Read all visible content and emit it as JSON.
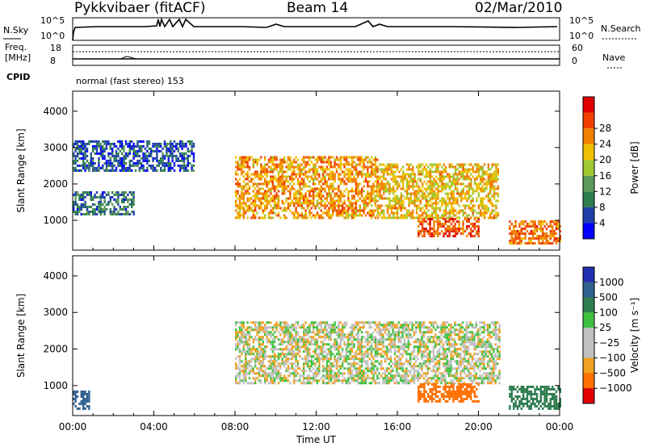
{
  "header": {
    "radar": "Pykkvibaer (fitACF)",
    "beam": "Beam 14",
    "date": "02/Mar/2010"
  },
  "top_panels": {
    "nsky_label": "N.Sky",
    "nsky_ticks": [
      "10^5",
      "10^0"
    ],
    "nsearch_label": "N.Search",
    "nsearch_ticks": [
      "10^5",
      "10^0"
    ],
    "freq_label": "Freq.",
    "freq_unit": "[MHz]",
    "freq_ticks": [
      "18",
      "8"
    ],
    "nave_label": "Nave",
    "nave_ticks": [
      "60",
      "0"
    ],
    "cpid_label": "CPID",
    "cpid_text": "normal (fast stereo) 153"
  },
  "colors": {
    "power": [
      "#0000ff",
      "#1f3fa8",
      "#2e7d4f",
      "#5a9a5a",
      "#a0c830",
      "#f0c000",
      "#f08000",
      "#f04000",
      "#e00000"
    ],
    "velocity": [
      "#2030b0",
      "#306090",
      "#2e7d4f",
      "#40c040",
      "#c0c0c0",
      "#c0c0c0",
      "#f0a020",
      "#ff7000",
      "#e00000"
    ]
  },
  "chart_data": [
    {
      "type": "heatmap",
      "title": "",
      "xlabel": "Time UT",
      "ylabel": "Slant Range [km]",
      "xticks": [
        "00:00",
        "04:00",
        "08:00",
        "12:00",
        "16:00",
        "20:00",
        "00:00"
      ],
      "yticks": [
        "1000",
        "2000",
        "3000",
        "4000"
      ],
      "xlim": [
        0,
        24
      ],
      "ylim": [
        180,
        4550
      ],
      "colorbar": {
        "label": "Power [dB]",
        "ticks": [
          "4",
          "8",
          "12",
          "16",
          "20",
          "24",
          "28"
        ],
        "range": [
          0,
          32
        ]
      },
      "regions": [
        {
          "t0": 8.0,
          "t1": 15.0,
          "r_lo": 1100,
          "r_hi": 2800,
          "value": 22
        },
        {
          "t0": 15.0,
          "t1": 21.0,
          "r_lo": 1100,
          "r_hi": 2600,
          "value": 20
        },
        {
          "t0": 17.0,
          "t1": 20.0,
          "r_lo": 600,
          "r_hi": 1100,
          "value": 26
        },
        {
          "t0": 0.0,
          "t1": 3.0,
          "r_lo": 1200,
          "r_hi": 1800,
          "value": 8
        },
        {
          "t0": 0.0,
          "t1": 6.0,
          "r_lo": 2400,
          "r_hi": 3200,
          "value": 6
        },
        {
          "t0": 21.5,
          "t1": 24.0,
          "r_lo": 400,
          "r_hi": 1000,
          "value": 24
        }
      ]
    },
    {
      "type": "heatmap",
      "title": "",
      "xlabel": "Time UT",
      "ylabel": "Slant Range [km]",
      "xticks": [
        "00:00",
        "04:00",
        "08:00",
        "12:00",
        "16:00",
        "20:00",
        "00:00"
      ],
      "yticks": [
        "1000",
        "2000",
        "3000",
        "4000"
      ],
      "xlim": [
        0,
        24
      ],
      "ylim": [
        180,
        4550
      ],
      "colorbar": {
        "label": "Velocity [m s⁻¹]",
        "ticks": [
          "1000",
          "500",
          "100",
          "25",
          "−25",
          "−100",
          "−500",
          "−1000"
        ]
      },
      "regions": [
        {
          "t0": 8.0,
          "t1": 21.0,
          "r_lo": 1100,
          "r_hi": 2800,
          "value": 0
        },
        {
          "t0": 17.0,
          "t1": 20.0,
          "r_lo": 600,
          "r_hi": 1100,
          "value": -300
        },
        {
          "t0": 21.5,
          "t1": 24.0,
          "r_lo": 400,
          "r_hi": 1000,
          "value": 150
        },
        {
          "t0": 0.0,
          "t1": 0.8,
          "r_lo": 400,
          "r_hi": 900,
          "value": 600
        }
      ]
    }
  ]
}
